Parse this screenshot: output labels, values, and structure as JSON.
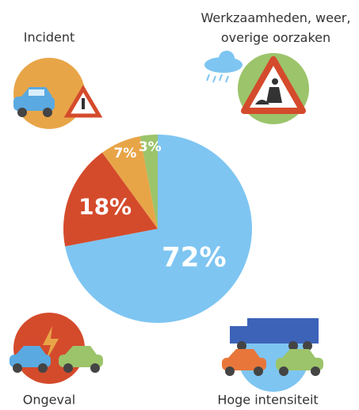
{
  "chart_data": {
    "type": "pie",
    "categories": [
      "Hoge intensiteit",
      "Ongeval",
      "Incident",
      "Werkzaamheden, weer, overige oorzaken"
    ],
    "values": [
      72,
      18,
      7,
      3
    ],
    "value_labels": [
      "72%",
      "18%",
      "7%",
      "3%"
    ],
    "colors": [
      "#7ec5f2",
      "#d44b2b",
      "#e8a548",
      "#9cc46a"
    ]
  }
}
